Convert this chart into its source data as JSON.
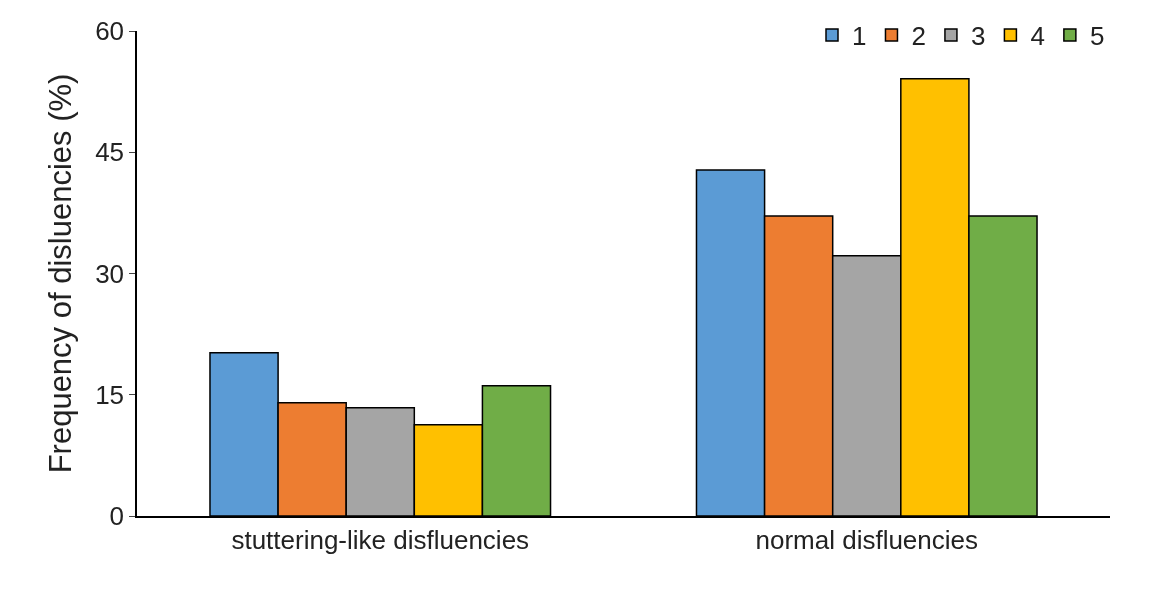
{
  "chart_data": {
    "type": "bar",
    "ylabel": "Frequency of disluencies (%)",
    "categories": [
      "stuttering-like disfluencies",
      "normal disfluencies"
    ],
    "series": [
      {
        "name": "1",
        "color": "#5b9bd5",
        "values": [
          20.2,
          42.8
        ]
      },
      {
        "name": "2",
        "color": "#ed7d31",
        "values": [
          14.0,
          37.1
        ]
      },
      {
        "name": "3",
        "color": "#a5a5a5",
        "values": [
          13.4,
          32.2
        ]
      },
      {
        "name": "4",
        "color": "#ffc000",
        "values": [
          11.3,
          54.1
        ]
      },
      {
        "name": "5",
        "color": "#70ad47",
        "values": [
          16.1,
          37.1
        ]
      }
    ],
    "ylim": [
      0,
      60
    ],
    "yticks": [
      0,
      15,
      30,
      45,
      60
    ],
    "grid": false,
    "legend": "top right"
  }
}
